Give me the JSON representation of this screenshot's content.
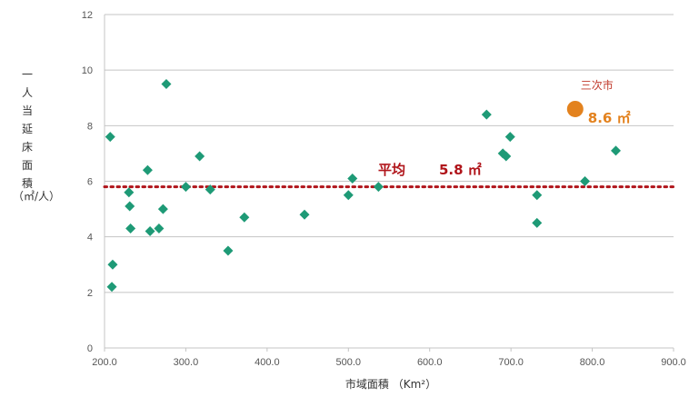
{
  "chart_data": {
    "type": "scatter",
    "xlabel": "市域面積 （Km²）",
    "ylabel_chars": [
      "一",
      "人",
      "当",
      "延",
      "床",
      "面",
      "積"
    ],
    "yunit": "（㎡/人）",
    "xlim": [
      200,
      900
    ],
    "ylim": [
      0,
      12
    ],
    "x_ticks": [
      200,
      300,
      400,
      500,
      600,
      700,
      800,
      900
    ],
    "x_tick_labels": [
      "200.0",
      "300.0",
      "400.0",
      "500.0",
      "600.0",
      "700.0",
      "800.0",
      "900.0"
    ],
    "y_ticks": [
      0,
      2,
      4,
      6,
      8,
      10,
      12
    ],
    "y_tick_labels": [
      "0",
      "2",
      "4",
      "6",
      "8",
      "10",
      "12"
    ],
    "grid": true,
    "marker_color": "#1e9a76",
    "points": [
      {
        "x": 207,
        "y": 7.6
      },
      {
        "x": 209,
        "y": 2.2
      },
      {
        "x": 210,
        "y": 3.0
      },
      {
        "x": 230,
        "y": 5.6
      },
      {
        "x": 231,
        "y": 5.1
      },
      {
        "x": 232,
        "y": 4.3
      },
      {
        "x": 253,
        "y": 6.4
      },
      {
        "x": 256,
        "y": 4.2
      },
      {
        "x": 267,
        "y": 4.3
      },
      {
        "x": 272,
        "y": 5.0
      },
      {
        "x": 276,
        "y": 9.5
      },
      {
        "x": 300,
        "y": 5.8
      },
      {
        "x": 317,
        "y": 6.9
      },
      {
        "x": 330,
        "y": 5.7
      },
      {
        "x": 352,
        "y": 3.5
      },
      {
        "x": 372,
        "y": 4.7
      },
      {
        "x": 446,
        "y": 4.8
      },
      {
        "x": 500,
        "y": 5.5
      },
      {
        "x": 505,
        "y": 6.1
      },
      {
        "x": 537,
        "y": 5.8
      },
      {
        "x": 670,
        "y": 8.4
      },
      {
        "x": 690,
        "y": 7.0
      },
      {
        "x": 694,
        "y": 6.9
      },
      {
        "x": 699,
        "y": 7.6
      },
      {
        "x": 732,
        "y": 5.5
      },
      {
        "x": 732,
        "y": 4.5
      },
      {
        "x": 791,
        "y": 6.0
      },
      {
        "x": 829,
        "y": 7.1
      }
    ],
    "highlight": {
      "label": "三次市",
      "value_label": "8.6 ㎡",
      "x": 779,
      "y": 8.6,
      "color": "#e3821e"
    },
    "average": {
      "label": "平均",
      "value_label": "5.8 ㎡",
      "y": 5.8,
      "color": "#b0141a"
    }
  }
}
